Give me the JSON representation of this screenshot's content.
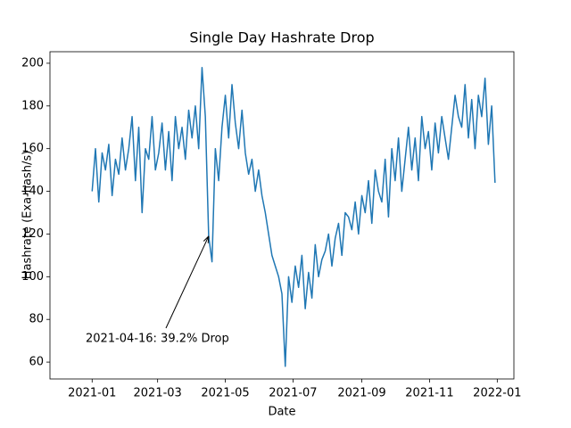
{
  "chart_data": {
    "type": "line",
    "title": "Single Day Hashrate Drop",
    "x_label": "Date",
    "y_label": "Hashrate (Exa-hash/s)",
    "color": "#1f77b4",
    "x": [
      "2021-01-01",
      "2021-01-04",
      "2021-01-07",
      "2021-01-10",
      "2021-01-13",
      "2021-01-16",
      "2021-01-19",
      "2021-01-22",
      "2021-01-25",
      "2021-01-28",
      "2021-01-31",
      "2021-02-03",
      "2021-02-06",
      "2021-02-09",
      "2021-02-12",
      "2021-02-15",
      "2021-02-18",
      "2021-02-21",
      "2021-02-24",
      "2021-02-27",
      "2021-03-02",
      "2021-03-05",
      "2021-03-08",
      "2021-03-11",
      "2021-03-14",
      "2021-03-17",
      "2021-03-20",
      "2021-03-23",
      "2021-03-26",
      "2021-03-29",
      "2021-04-01",
      "2021-04-04",
      "2021-04-07",
      "2021-04-10",
      "2021-04-13",
      "2021-04-16",
      "2021-04-19",
      "2021-04-22",
      "2021-04-25",
      "2021-04-28",
      "2021-05-01",
      "2021-05-04",
      "2021-05-07",
      "2021-05-10",
      "2021-05-13",
      "2021-05-16",
      "2021-05-19",
      "2021-05-22",
      "2021-05-25",
      "2021-05-28",
      "2021-05-31",
      "2021-06-03",
      "2021-06-06",
      "2021-06-09",
      "2021-06-12",
      "2021-06-15",
      "2021-06-18",
      "2021-06-21",
      "2021-06-24",
      "2021-06-27",
      "2021-06-30",
      "2021-07-03",
      "2021-07-06",
      "2021-07-09",
      "2021-07-12",
      "2021-07-15",
      "2021-07-18",
      "2021-07-21",
      "2021-07-24",
      "2021-07-27",
      "2021-07-30",
      "2021-08-02",
      "2021-08-05",
      "2021-08-08",
      "2021-08-11",
      "2021-08-14",
      "2021-08-17",
      "2021-08-20",
      "2021-08-23",
      "2021-08-26",
      "2021-08-29",
      "2021-09-01",
      "2021-09-04",
      "2021-09-07",
      "2021-09-10",
      "2021-09-13",
      "2021-09-16",
      "2021-09-19",
      "2021-09-22",
      "2021-09-25",
      "2021-09-28",
      "2021-10-01",
      "2021-10-04",
      "2021-10-07",
      "2021-10-10",
      "2021-10-13",
      "2021-10-16",
      "2021-10-19",
      "2021-10-22",
      "2021-10-25",
      "2021-10-28",
      "2021-10-31",
      "2021-11-03",
      "2021-11-06",
      "2021-11-09",
      "2021-11-12",
      "2021-11-15",
      "2021-11-18",
      "2021-11-21",
      "2021-11-24",
      "2021-11-27",
      "2021-11-30",
      "2021-12-03",
      "2021-12-06",
      "2021-12-09",
      "2021-12-12",
      "2021-12-15",
      "2021-12-18",
      "2021-12-21",
      "2021-12-24",
      "2021-12-27",
      "2021-12-30"
    ],
    "values": [
      140,
      160,
      135,
      158,
      150,
      162,
      138,
      155,
      148,
      165,
      150,
      160,
      175,
      145,
      170,
      130,
      160,
      155,
      175,
      150,
      158,
      172,
      150,
      168,
      145,
      175,
      160,
      170,
      155,
      178,
      165,
      180,
      160,
      198,
      175,
      119,
      107,
      160,
      145,
      170,
      185,
      165,
      190,
      172,
      160,
      178,
      158,
      148,
      155,
      140,
      150,
      138,
      130,
      120,
      110,
      105,
      100,
      92,
      58,
      100,
      88,
      105,
      95,
      110,
      85,
      102,
      90,
      115,
      100,
      108,
      112,
      120,
      105,
      118,
      125,
      110,
      130,
      128,
      122,
      135,
      120,
      138,
      130,
      145,
      125,
      150,
      140,
      135,
      155,
      128,
      160,
      145,
      165,
      140,
      155,
      170,
      150,
      165,
      145,
      175,
      160,
      168,
      150,
      172,
      158,
      175,
      165,
      155,
      170,
      185,
      175,
      170,
      190,
      165,
      183,
      160,
      185,
      175,
      193,
      162,
      180,
      144
    ],
    "xlim": [
      "2020-11-24",
      "2022-01-16"
    ],
    "xticks": [
      {
        "value": "2021-01-01",
        "label": "2021-01"
      },
      {
        "value": "2021-03-01",
        "label": "2021-03"
      },
      {
        "value": "2021-05-01",
        "label": "2021-05"
      },
      {
        "value": "2021-07-01",
        "label": "2021-07"
      },
      {
        "value": "2021-09-01",
        "label": "2021-09"
      },
      {
        "value": "2021-11-01",
        "label": "2021-11"
      },
      {
        "value": "2022-01-01",
        "label": "2022-01"
      }
    ],
    "ylim": [
      52.1,
      205.4
    ],
    "yticks": [
      60,
      80,
      100,
      120,
      140,
      160,
      180,
      200
    ],
    "annotation": {
      "text": "2021-04-16: 39.2% Drop",
      "xy": [
        "2021-04-16",
        119
      ]
    }
  }
}
